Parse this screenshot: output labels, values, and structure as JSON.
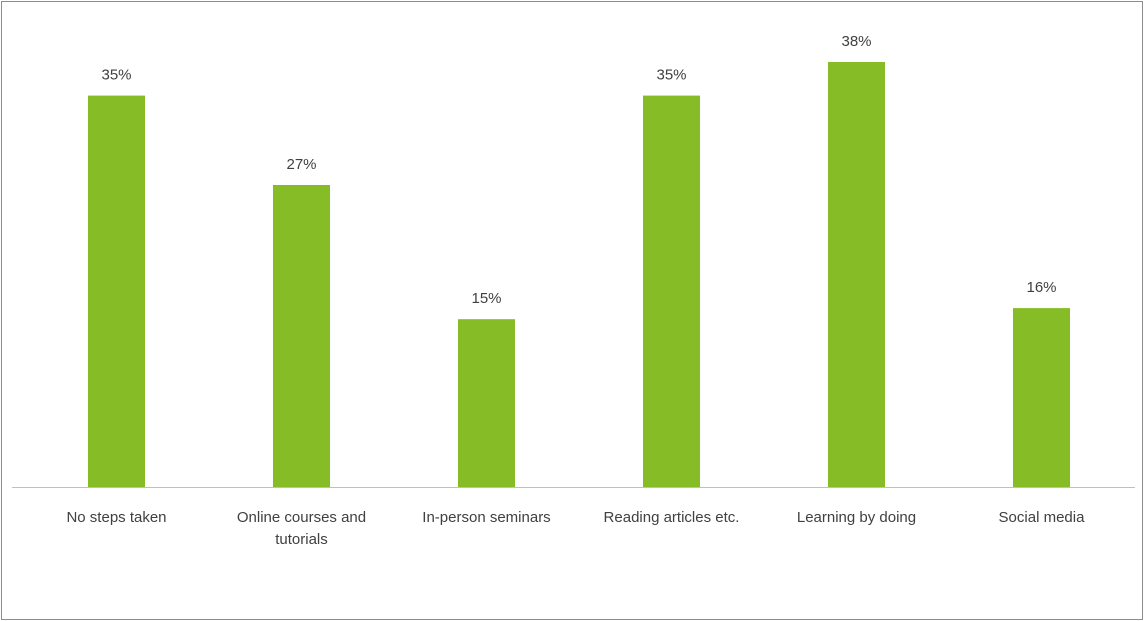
{
  "chart_data": {
    "type": "bar",
    "title": "",
    "xlabel": "",
    "ylabel": "",
    "categories": [
      [
        "No steps taken"
      ],
      [
        "Online courses and",
        "tutorials"
      ],
      [
        "In-person seminars"
      ],
      [
        "Reading articles etc."
      ],
      [
        "Learning by doing"
      ],
      [
        "Social media"
      ]
    ],
    "values": [
      35,
      27,
      15,
      35,
      38,
      16
    ],
    "value_labels": [
      "35%",
      "27%",
      "15%",
      "35%",
      "38%",
      "16%"
    ],
    "unit": "%",
    "ylim": [
      0,
      40
    ],
    "grid": false,
    "legend": "none",
    "bar_color": "#86bc25",
    "axis_color": "#bfbfbf",
    "label_color": "#404040"
  }
}
